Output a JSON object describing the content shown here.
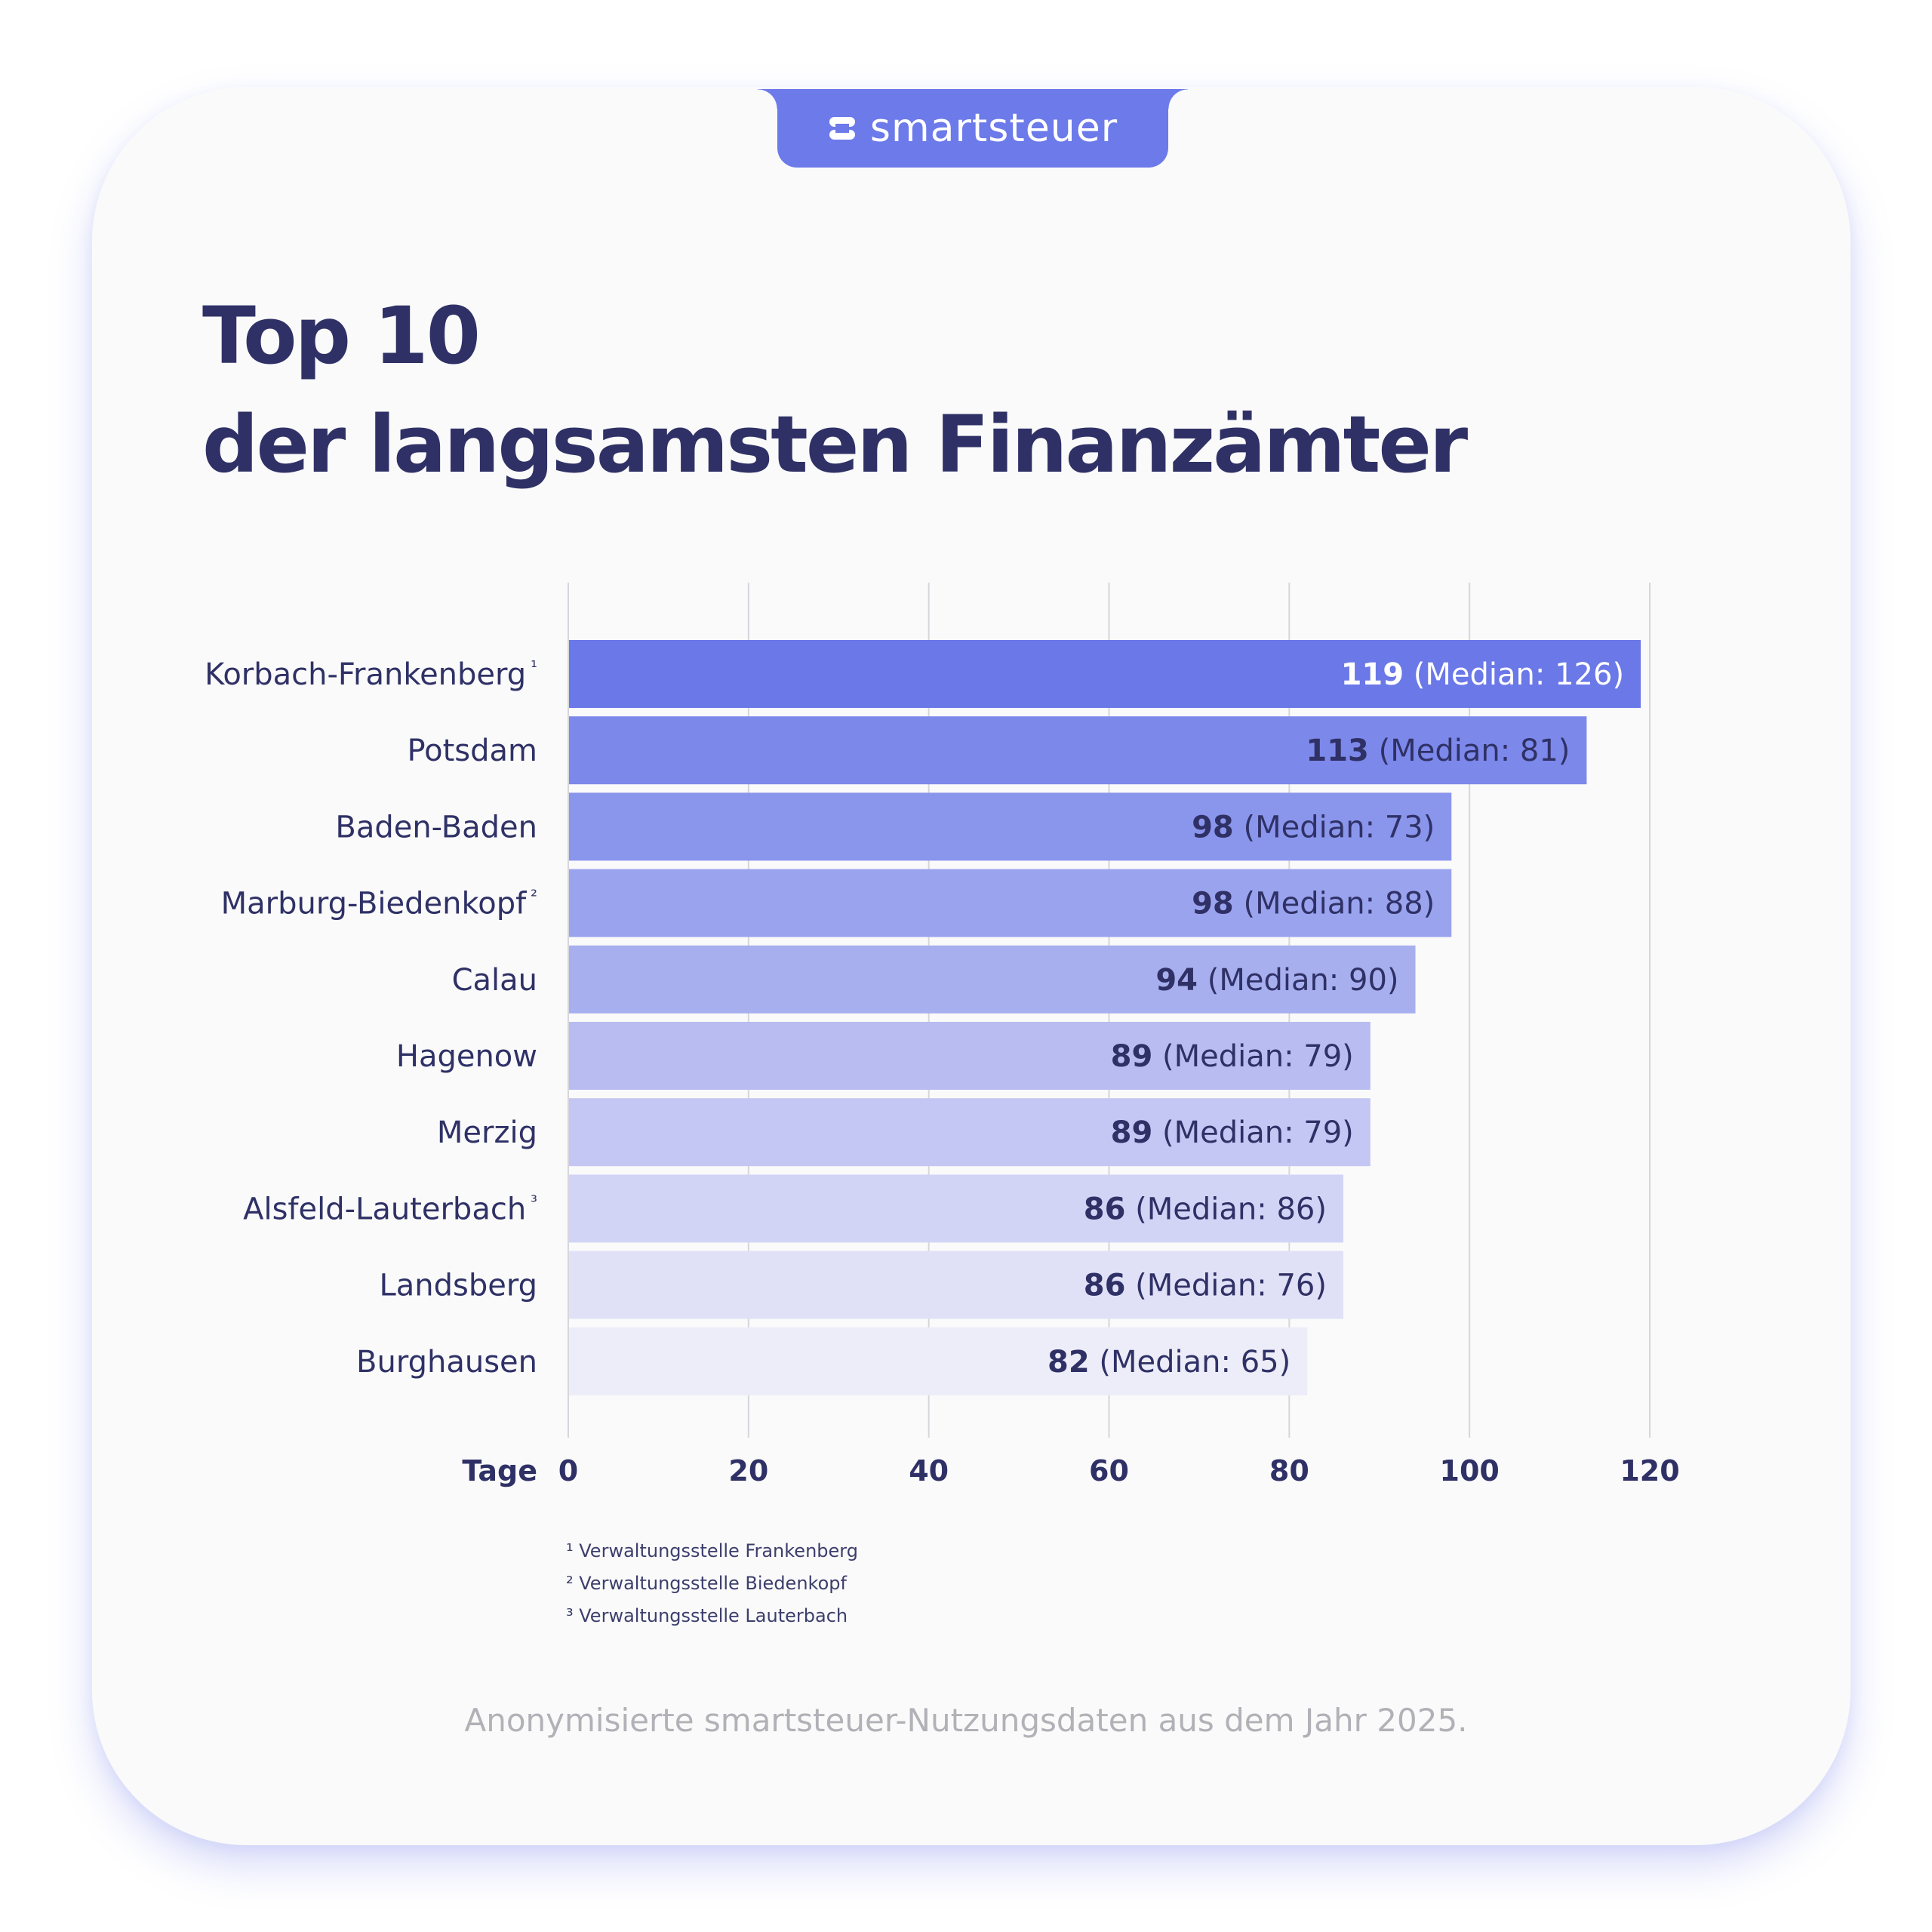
{
  "brand": {
    "name": "smartsteuer",
    "tab_color": "#6c7aea"
  },
  "title_line1": "Top 10",
  "title_line2": "der langsamsten Finanzämter",
  "chart_data": {
    "type": "bar",
    "orientation": "horizontal",
    "categories": [
      "Korbach-Frankenberg",
      "Potsdam",
      "Baden-Baden",
      "Marburg-Biedenkopf",
      "Calau",
      "Hagenow",
      "Merzig",
      "Alsfeld-Lauterbach",
      "Landsberg",
      "Burghausen"
    ],
    "footnote_marks": [
      "¹",
      "",
      "",
      "²",
      "",
      "",
      "",
      "³",
      "",
      ""
    ],
    "values": [
      119,
      113,
      98,
      98,
      94,
      89,
      89,
      86,
      86,
      82
    ],
    "medians": [
      126,
      81,
      73,
      88,
      90,
      79,
      79,
      86,
      76,
      65
    ],
    "median_label": "Median",
    "xlabel": "Tage",
    "ylabel": "",
    "xlim": [
      0,
      120
    ],
    "xticks": [
      0,
      20,
      40,
      60,
      80,
      100,
      120
    ],
    "grid": true,
    "colors": [
      "#6b78e8",
      "#7c88ea",
      "#8a95ec",
      "#9aa3ee",
      "#a8afef",
      "#b8bcf0",
      "#c4c7f3",
      "#d2d4f6",
      "#e0e1f7",
      "#ecedf8"
    ],
    "label_colors": [
      "#ffffff",
      "#2f3166",
      "#2f3166",
      "#2f3166",
      "#2f3166",
      "#2f3166",
      "#2f3166",
      "#2f3166",
      "#2f3166",
      "#2f3166"
    ]
  },
  "footnotes": [
    "¹ Verwaltungsstelle Frankenberg",
    "² Verwaltungsstelle Biedenkopf",
    "³ Verwaltungsstelle Lauterbach"
  ],
  "source": "Anonymisierte smartsteuer-Nutzungsdaten aus dem Jahr 2025."
}
